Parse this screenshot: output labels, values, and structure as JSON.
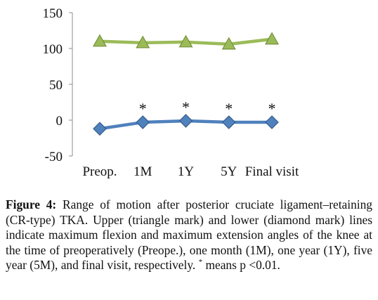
{
  "chart_data": {
    "type": "line",
    "categories": [
      "Preop.",
      "1M",
      "1Y",
      "5Y",
      "Final visit"
    ],
    "ylim": [
      -50,
      150
    ],
    "yticks": [
      "150",
      "100",
      "50",
      "0",
      "-50"
    ],
    "ytick_values": [
      150,
      100,
      50,
      0,
      -50
    ],
    "grid": false,
    "legend": "none",
    "series": [
      {
        "marker": "triangle",
        "color": "#9BBB59",
        "stroke": "#76923C",
        "values": [
          110,
          108,
          109,
          106,
          113
        ]
      },
      {
        "marker": "diamond",
        "color": "#4F81BD",
        "stroke": "#385D8A",
        "values": [
          -12,
          -3,
          -1,
          -3,
          -3
        ]
      }
    ],
    "annotations": {
      "symbol": "*",
      "categories": [
        "1M",
        "1Y",
        "5Y",
        "Final visit"
      ]
    }
  },
  "caption": {
    "label": "Figure 4:",
    "text": " Range of motion after posterior cruciate ligament–retaining (CR-type) TKA. Upper (triangle mark) and lower (diamond mark) lines indicate maximum flexion and maximum extension angles of the knee at the time of preoperatively (Preope.), one month (1M), one year (1Y), five year (5M), and final visit, respectively. ",
    "star": "*",
    "tail": " means p <0.01."
  }
}
